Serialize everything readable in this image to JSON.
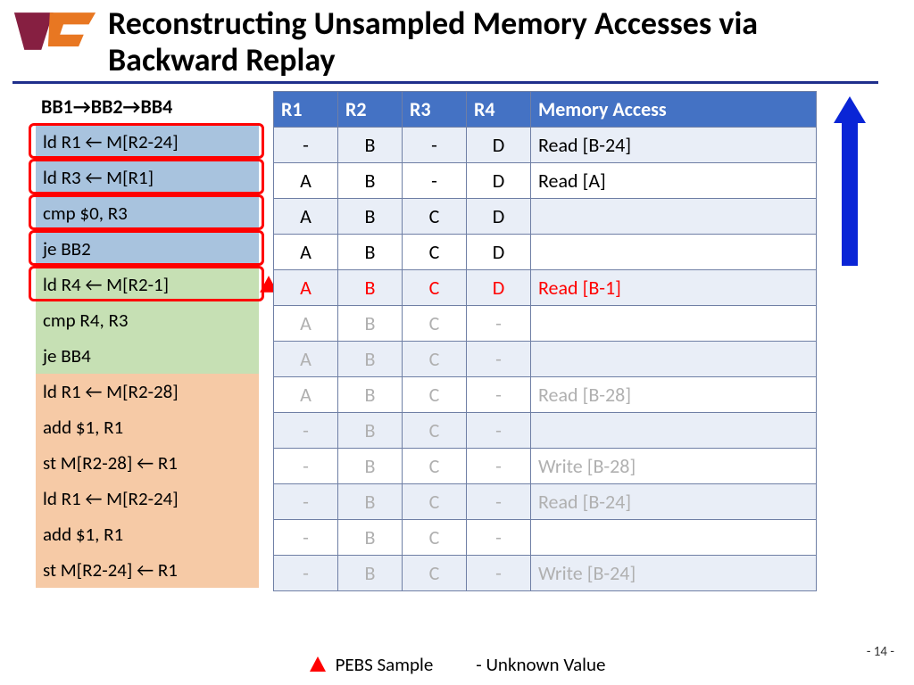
{
  "title": "Reconstructing Unsampled Memory Accesses via Backward Replay",
  "trace_header": "BB1→BB2→BB4",
  "colors": {
    "header_blue": "#4472c4",
    "underline_blue": "#1f2f8c",
    "bb1_bg": "#a8c3de",
    "bb2_bg": "#c6e0b4",
    "bb4_bg": "#f6caa6",
    "row_alt": "#e9eef7",
    "row_nor": "#ffffff",
    "emph_red": "#ff0000",
    "dim_gray": "#b0b0b0",
    "arrow_blue": "#0a25d6",
    "vt_maroon": "#861f41",
    "vt_orange": "#e87722"
  },
  "instructions": [
    {
      "text": "ld R1 ← M[R2-24]",
      "bb": "bb1",
      "boxed": true
    },
    {
      "text": "ld R3 ← M[R1]",
      "bb": "bb1",
      "boxed": true
    },
    {
      "text": "cmp $0, R3",
      "bb": "bb1",
      "boxed": true
    },
    {
      "text": "je BB2",
      "bb": "bb1",
      "boxed": true
    },
    {
      "text": "ld R4 ← M[R2-1]",
      "bb": "bb2",
      "boxed": true,
      "pebs": true
    },
    {
      "text": "cmp R4, R3",
      "bb": "bb2"
    },
    {
      "text": "je BB4",
      "bb": "bb2"
    },
    {
      "text": "ld R1 ← M[R2-28]",
      "bb": "bb4"
    },
    {
      "text": "add $1, R1",
      "bb": "bb4"
    },
    {
      "text": "st M[R2-28] ← R1",
      "bb": "bb4"
    },
    {
      "text": "ld R1 ← M[R2-24]",
      "bb": "bb4"
    },
    {
      "text": "add $1, R1",
      "bb": "bb4"
    },
    {
      "text": "st M[R2-24] ← R1",
      "bb": "bb4"
    }
  ],
  "columns": [
    "R1",
    "R2",
    "R3",
    "R4",
    "Memory Access"
  ],
  "rows": [
    {
      "r1": "-",
      "r2": "B",
      "r3": "-",
      "r4": "D",
      "mem": "Read [B-24]",
      "style": "normal",
      "alt": true
    },
    {
      "r1": "A",
      "r2": "B",
      "r3": "-",
      "r4": "D",
      "mem": "Read [A]",
      "style": "normal",
      "alt": false
    },
    {
      "r1": "A",
      "r2": "B",
      "r3": "C",
      "r4": "D",
      "mem": "",
      "style": "normal",
      "alt": true
    },
    {
      "r1": "A",
      "r2": "B",
      "r3": "C",
      "r4": "D",
      "mem": "",
      "style": "normal",
      "alt": false
    },
    {
      "r1": "A",
      "r2": "B",
      "r3": "C",
      "r4": "D",
      "mem": "Read [B-1]",
      "style": "emph",
      "alt": true
    },
    {
      "r1": "A",
      "r2": "B",
      "r3": "C",
      "r4": "-",
      "mem": "",
      "style": "dim",
      "alt": false
    },
    {
      "r1": "A",
      "r2": "B",
      "r3": "C",
      "r4": "-",
      "mem": "",
      "style": "dim",
      "alt": true
    },
    {
      "r1": "A",
      "r2": "B",
      "r3": "C",
      "r4": "-",
      "mem": "Read [B-28]",
      "style": "dim",
      "alt": false
    },
    {
      "r1": "-",
      "r2": "B",
      "r3": "C",
      "r4": "-",
      "mem": "",
      "style": "dim",
      "alt": true
    },
    {
      "r1": "-",
      "r2": "B",
      "r3": "C",
      "r4": "-",
      "mem": "Write [B-28]",
      "style": "dim",
      "alt": false
    },
    {
      "r1": "-",
      "r2": "B",
      "r3": "C",
      "r4": "-",
      "mem": "Read [B-24]",
      "style": "dim",
      "alt": true
    },
    {
      "r1": "-",
      "r2": "B",
      "r3": "C",
      "r4": "-",
      "mem": "",
      "style": "dim",
      "alt": false
    },
    {
      "r1": "-",
      "r2": "B",
      "r3": "C",
      "r4": "-",
      "mem": "Write [B-24]",
      "style": "dim",
      "alt": true
    }
  ],
  "legend": {
    "pebs": "PEBS Sample",
    "unknown": "- Unknown Value"
  },
  "page_number": "- 14 -"
}
